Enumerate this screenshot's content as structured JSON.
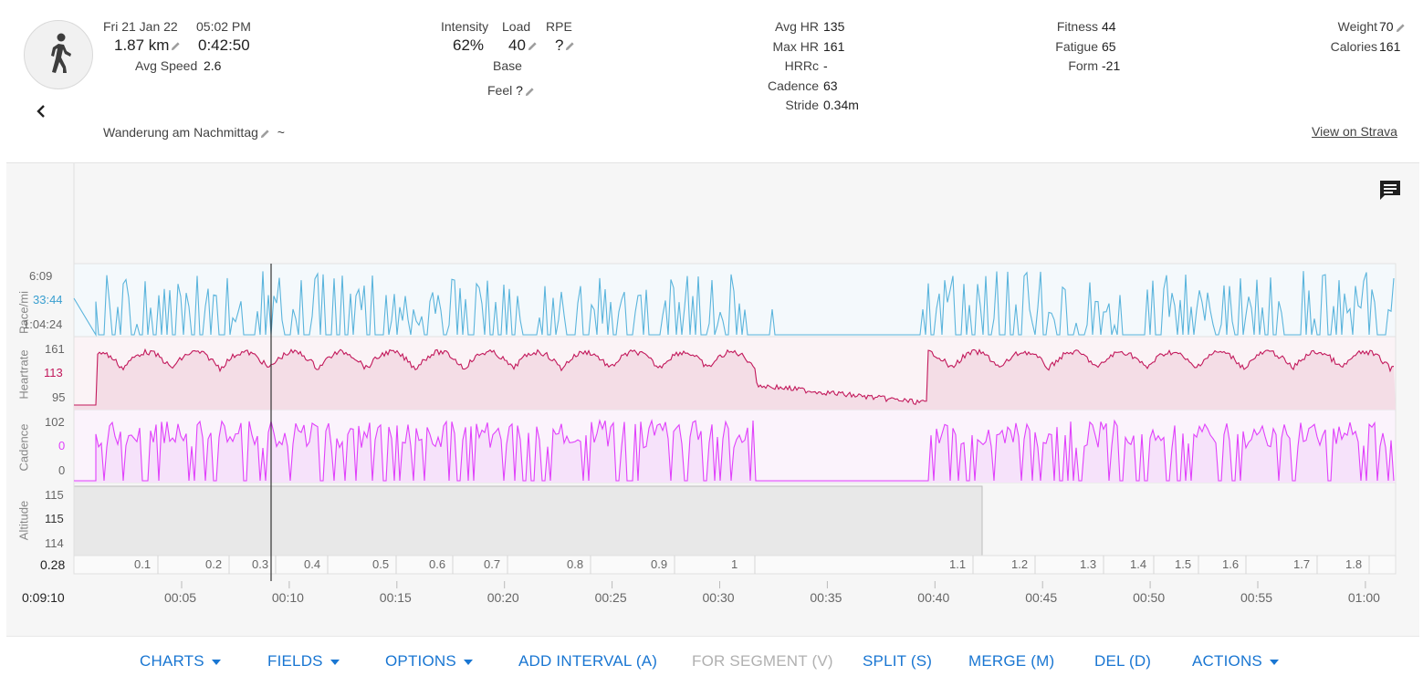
{
  "header": {
    "date": "Fri 21 Jan 22",
    "time": "05:02 PM",
    "distance": "1.87 km",
    "duration": "0:42:50",
    "avg_speed_label": "Avg Speed",
    "avg_speed": "2.6",
    "title": "Wanderung am Nachmittag",
    "title_suffix": "~",
    "strava_link": "View on Strava"
  },
  "intensity": {
    "intensity_label": "Intensity",
    "intensity_value": "62%",
    "load_label": "Load",
    "load_value": "40",
    "rpe_label": "RPE",
    "rpe_value": "?",
    "base_label": "Base",
    "feel_label": "Feel",
    "feel_value": "?"
  },
  "hr": {
    "avg_hr_label": "Avg HR",
    "avg_hr": "135",
    "max_hr_label": "Max HR",
    "max_hr": "161",
    "hrrc_label": "HRRc",
    "hrrc": "-",
    "cadence_label": "Cadence",
    "cadence": "63",
    "stride_label": "Stride",
    "stride": "0.34m"
  },
  "fitness": {
    "fitness_label": "Fitness",
    "fitness": "44",
    "fatigue_label": "Fatigue",
    "fatigue": "65",
    "form_label": "Form",
    "form": "-21"
  },
  "body": {
    "weight_label": "Weight",
    "weight": "70",
    "calories_label": "Calories",
    "calories": "161"
  },
  "charts": {
    "pace": {
      "label": "Pace/mi",
      "ticks": [
        "6:09",
        "33:44",
        "1:04:24"
      ],
      "color": "#5ab4dc"
    },
    "heartrate": {
      "label": "Heartrate",
      "ticks": [
        "161",
        "113",
        "95"
      ],
      "color": "#c2185b"
    },
    "cadence": {
      "label": "Cadence",
      "ticks": [
        "102",
        "0",
        "0"
      ],
      "color": "#e040fb"
    },
    "altitude": {
      "label": "Altitude",
      "ticks": [
        "115",
        "115",
        "114"
      ]
    },
    "distance_cursor": "0.28",
    "distance_ticks": [
      "0.1",
      "0.2",
      "0.3",
      "0.4",
      "0.5",
      "0.6",
      "0.7",
      "0.8",
      "0.9",
      "1",
      "1.1",
      "1.2",
      "1.3",
      "1.4",
      "1.5",
      "1.6",
      "1.7",
      "1.8"
    ],
    "time_cursor": "0:09:10",
    "time_ticks": [
      "00:05",
      "00:10",
      "00:15",
      "00:20",
      "00:25",
      "00:30",
      "00:35",
      "00:40",
      "00:45",
      "00:50",
      "00:55",
      "01:00"
    ]
  },
  "toolbar": {
    "charts": "CHARTS",
    "fields": "FIELDS",
    "options": "OPTIONS",
    "add_interval": "ADD INTERVAL (A)",
    "for_segment": "FOR SEGMENT (V)",
    "split": "SPLIT (S)",
    "merge": "MERGE (M)",
    "del": "DEL (D)",
    "actions": "ACTIONS"
  },
  "icons": {
    "activity": "walking-person-icon",
    "back": "chevron-left-icon",
    "comment": "comment-icon",
    "edit": "pencil-icon"
  },
  "colors": {
    "accent": "#1976d2",
    "pace": "#5ab4dc",
    "heartrate": "#c2185b",
    "cadence": "#e040fb"
  }
}
